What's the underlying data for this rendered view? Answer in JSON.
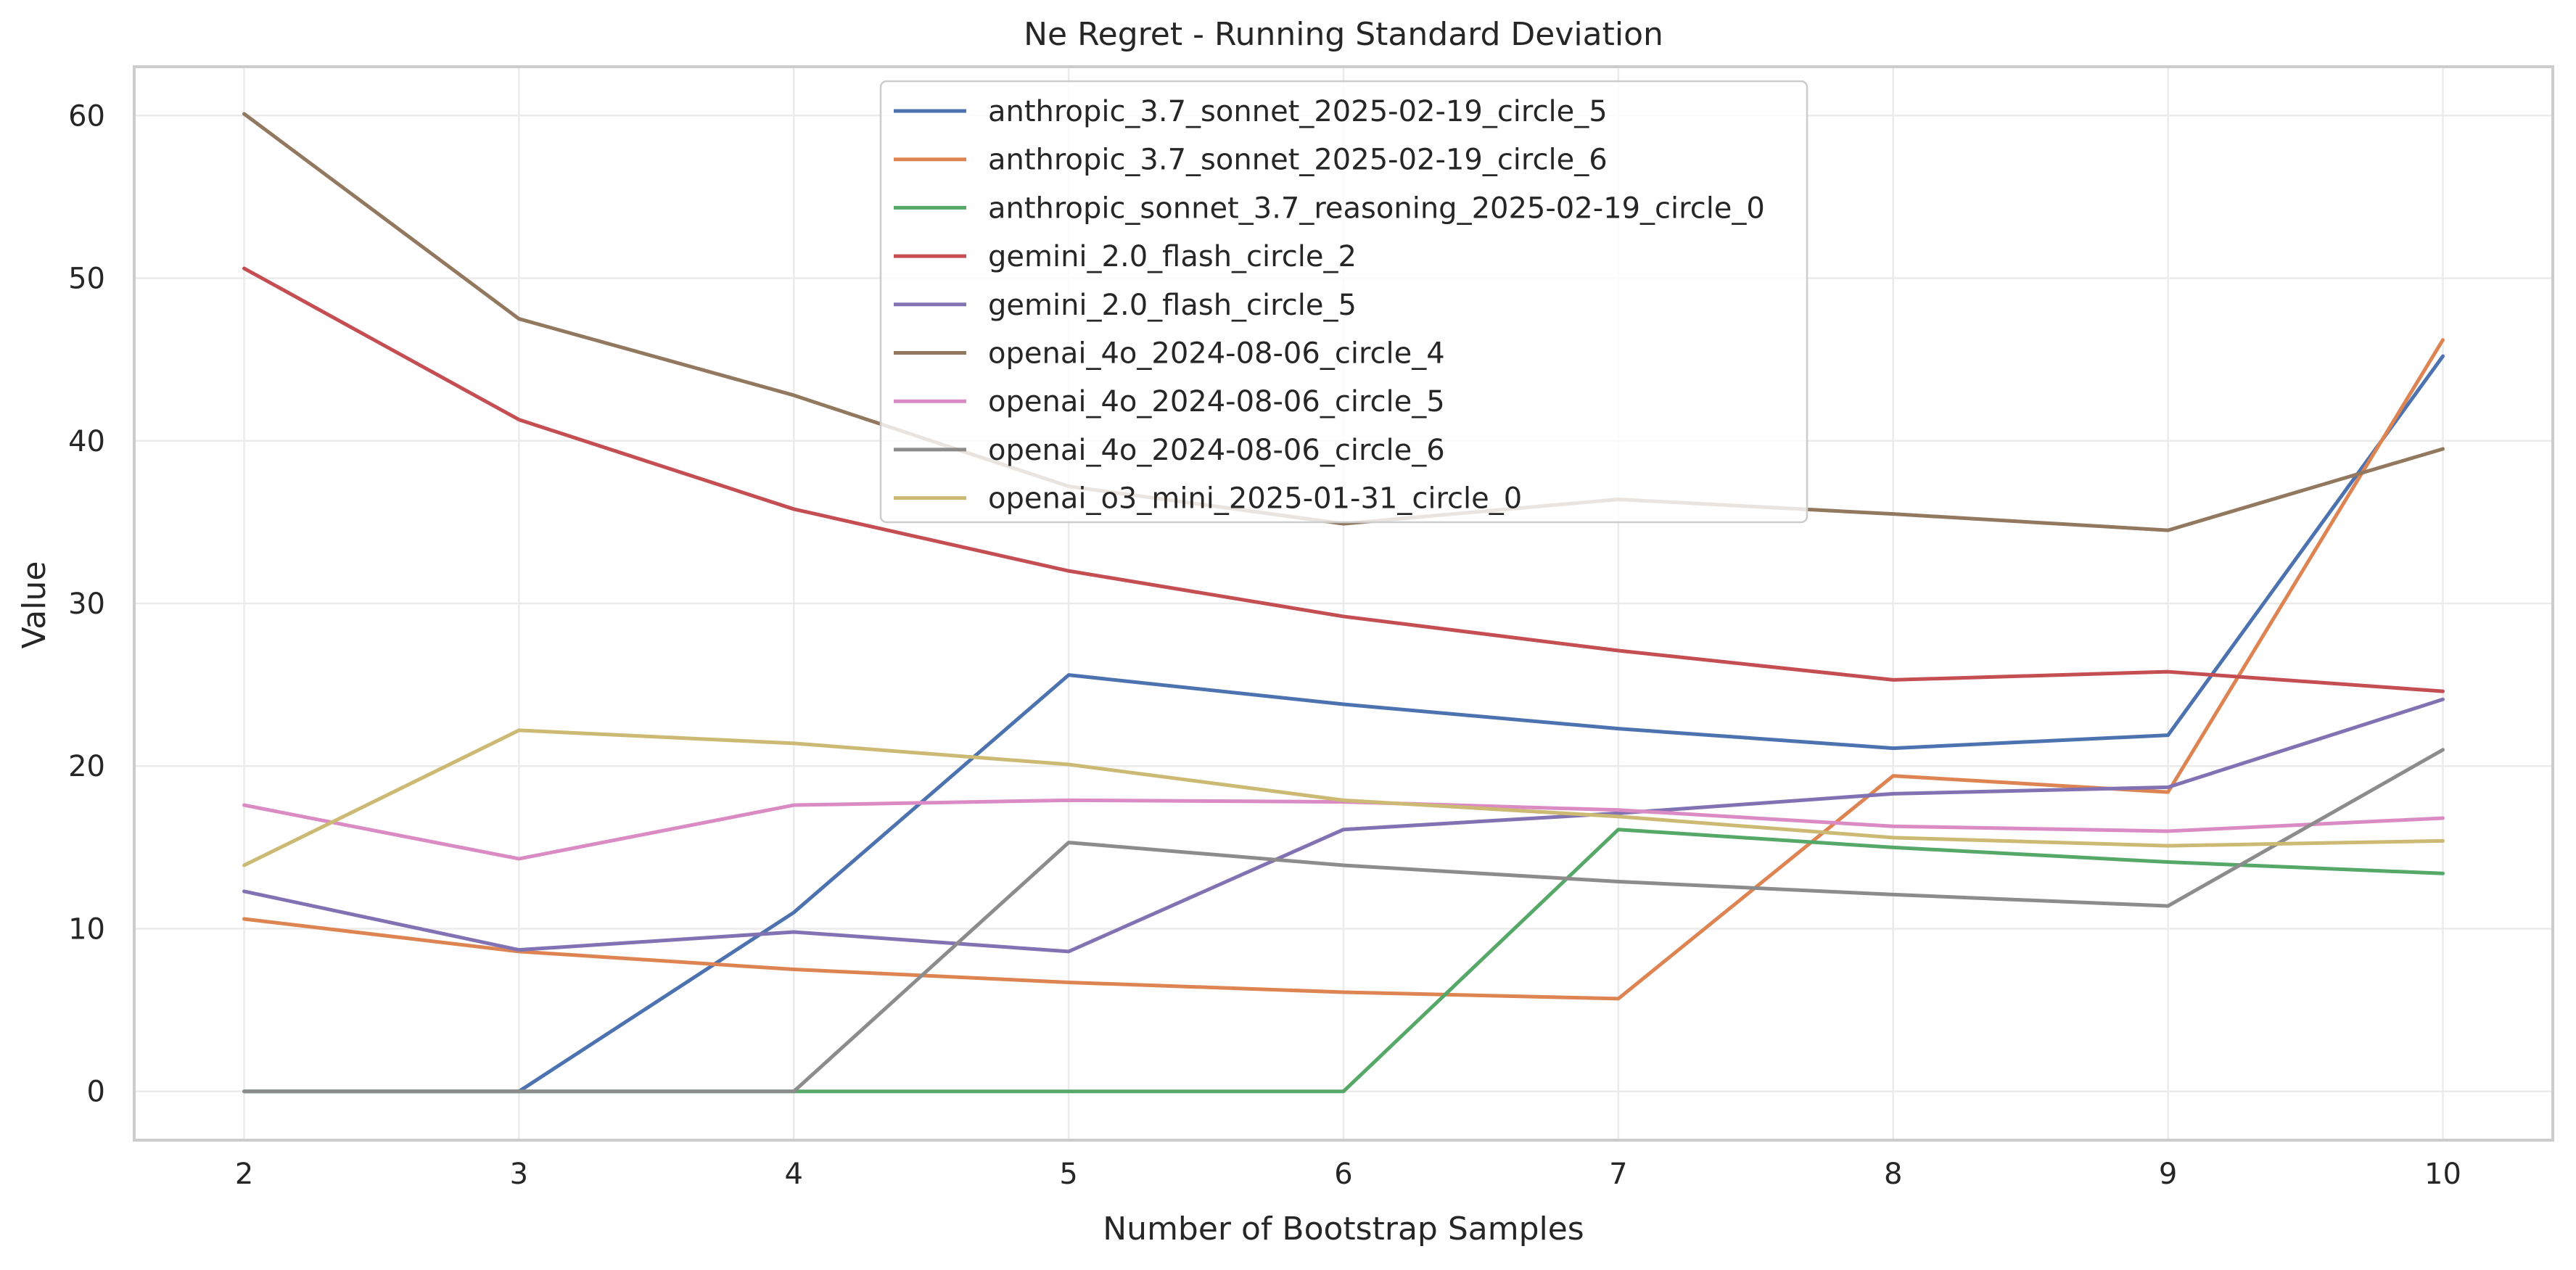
{
  "chart_data": {
    "type": "line",
    "title": "Ne Regret - Running Standard Deviation",
    "xlabel": "Number of Bootstrap Samples",
    "ylabel": "Value",
    "x": [
      2,
      3,
      4,
      5,
      6,
      7,
      8,
      9,
      10
    ],
    "xlim": [
      1.6,
      10.4
    ],
    "ylim": [
      -3,
      63
    ],
    "xticks": [
      2,
      3,
      4,
      5,
      6,
      7,
      8,
      9,
      10
    ],
    "yticks": [
      0,
      10,
      20,
      30,
      40,
      50,
      60
    ],
    "grid": true,
    "legend_position": "upper-center",
    "series": [
      {
        "name": "anthropic_3.7_sonnet_2025-02-19_circle_5",
        "color": "#4c72b0",
        "values": [
          0,
          0,
          11.0,
          25.6,
          23.8,
          22.3,
          21.1,
          21.9,
          45.2
        ]
      },
      {
        "name": "anthropic_3.7_sonnet_2025-02-19_circle_6",
        "color": "#dd8452",
        "values": [
          10.6,
          8.6,
          7.5,
          6.7,
          6.1,
          5.7,
          19.4,
          18.4,
          46.2
        ]
      },
      {
        "name": "anthropic_sonnet_3.7_reasoning_2025-02-19_circle_0",
        "color": "#55a868",
        "values": [
          0,
          0,
          0,
          0,
          0,
          16.1,
          15.0,
          14.1,
          13.4
        ]
      },
      {
        "name": "gemini_2.0_flash_circle_2",
        "color": "#c44e52",
        "values": [
          50.6,
          41.3,
          35.8,
          32.0,
          29.2,
          27.1,
          25.3,
          25.8,
          24.6
        ]
      },
      {
        "name": "gemini_2.0_flash_circle_5",
        "color": "#8172b3",
        "values": [
          12.3,
          8.7,
          9.8,
          8.6,
          16.1,
          17.1,
          18.3,
          18.7,
          24.1
        ]
      },
      {
        "name": "openai_4o_2024-08-06_circle_4",
        "color": "#937860",
        "values": [
          60.1,
          47.5,
          42.8,
          37.2,
          34.9,
          36.4,
          35.5,
          34.5,
          39.5
        ]
      },
      {
        "name": "openai_4o_2024-08-06_circle_5",
        "color": "#da8bc3",
        "values": [
          17.6,
          14.3,
          17.6,
          17.9,
          17.8,
          17.3,
          16.3,
          16.0,
          16.8
        ]
      },
      {
        "name": "openai_4o_2024-08-06_circle_6",
        "color": "#8c8c8c",
        "values": [
          0,
          0,
          0,
          15.3,
          13.9,
          12.9,
          12.1,
          11.4,
          21.0
        ]
      },
      {
        "name": "openai_o3_mini_2025-01-31_circle_0",
        "color": "#ccb974",
        "values": [
          13.9,
          22.2,
          21.4,
          20.1,
          17.9,
          16.9,
          15.6,
          15.1,
          15.4
        ]
      }
    ]
  }
}
